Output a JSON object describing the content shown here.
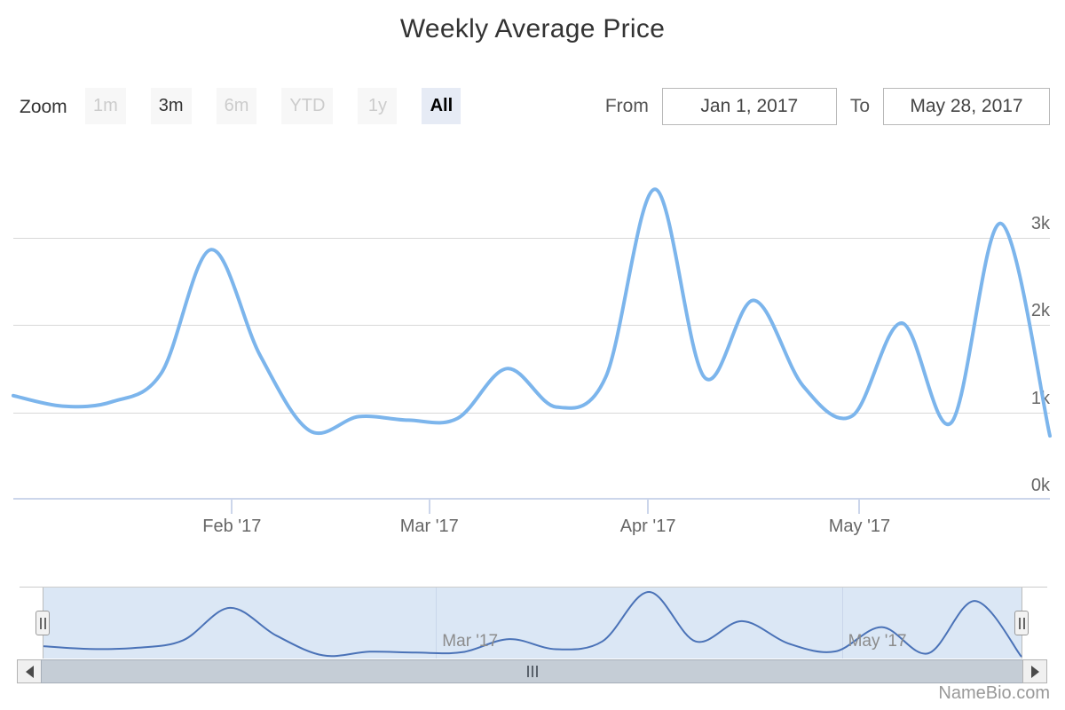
{
  "title": "Weekly Average Price",
  "toolbar": {
    "zoom_label": "Zoom",
    "range_buttons": [
      {
        "label": "1m",
        "state": "disabled"
      },
      {
        "label": "3m",
        "state": "normal"
      },
      {
        "label": "6m",
        "state": "disabled"
      },
      {
        "label": "YTD",
        "state": "disabled"
      },
      {
        "label": "1y",
        "state": "disabled"
      },
      {
        "label": "All",
        "state": "selected"
      }
    ],
    "from_label": "From",
    "from_value": "Jan 1, 2017",
    "to_label": "To",
    "to_value": "May 28, 2017"
  },
  "chart_data": {
    "type": "spline",
    "title": "Weekly Average Price",
    "x_unit": "week",
    "dates": [
      "2017-01-01",
      "2017-01-08",
      "2017-01-15",
      "2017-01-22",
      "2017-01-29",
      "2017-02-05",
      "2017-02-12",
      "2017-02-19",
      "2017-02-26",
      "2017-03-05",
      "2017-03-12",
      "2017-03-19",
      "2017-03-26",
      "2017-04-02",
      "2017-04-09",
      "2017-04-16",
      "2017-04-23",
      "2017-04-30",
      "2017-05-07",
      "2017-05-14",
      "2017-05-21",
      "2017-05-28"
    ],
    "values": [
      1190,
      1070,
      1120,
      1450,
      2860,
      1650,
      790,
      950,
      910,
      930,
      1500,
      1060,
      1400,
      3550,
      1400,
      2280,
      1300,
      960,
      2020,
      880,
      3160,
      730
    ],
    "series_color": "#7cb5ec",
    "xlim": [
      "2017-01-01",
      "2017-05-28"
    ],
    "ylim": [
      0,
      4000
    ],
    "grid": "horizontal",
    "yticks": [
      {
        "label": "0k",
        "value": 0
      },
      {
        "label": "1k",
        "value": 1000
      },
      {
        "label": "2k",
        "value": 2000
      },
      {
        "label": "3k",
        "value": 3000
      }
    ],
    "xticks": [
      {
        "label": "Feb '17",
        "day": 31
      },
      {
        "label": "Mar '17",
        "day": 59
      },
      {
        "label": "Apr '17",
        "day": 90
      },
      {
        "label": "May '17",
        "day": 120
      }
    ],
    "navigator": {
      "labels": [
        {
          "label": "Mar '17",
          "day": 59
        },
        {
          "label": "May '17",
          "day": 120
        }
      ],
      "line_color": "#4a72b7",
      "mask_color": "#dbe7f5",
      "vmin": 730,
      "vmax": 3550
    }
  },
  "icons": {
    "scrollbar_left": "left-triangle",
    "scrollbar_right": "right-triangle",
    "navigator_handle": "double-bar-grip",
    "scrollbar_grip": "triple-bar-grip"
  },
  "colors": {
    "series": "#7cb5ec",
    "navigator_line": "#4a72b7",
    "navigator_mask": "#dbe7f5",
    "gridline": "#d8d8d8",
    "axis_line": "#ccd6eb",
    "button_bg": "#f7f7f7",
    "selected_button_bg": "#e6ebf5"
  },
  "attribution": "NameBio.com"
}
